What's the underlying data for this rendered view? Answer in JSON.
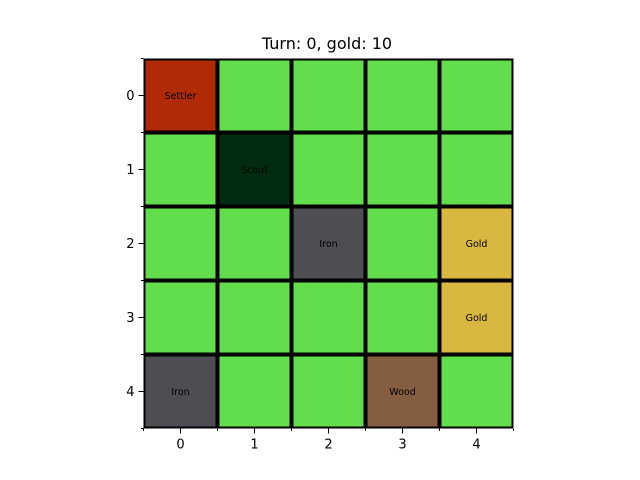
{
  "header": {
    "title": "Turn: 0, gold: 10"
  },
  "grid": {
    "rows": 5,
    "cols": 5,
    "row_labels": [
      "0",
      "1",
      "2",
      "3",
      "4"
    ],
    "col_labels": [
      "0",
      "1",
      "2",
      "3",
      "4"
    ],
    "colors": {
      "grass": "#62de4c",
      "settler": "#b02a06",
      "scout": "#012c12",
      "iron": "#4e4d54",
      "gold": "#d8b840",
      "wood": "#855e42",
      "border": "#000000"
    },
    "cells": [
      [
        {
          "type": "settler",
          "label": "Settler"
        },
        {
          "type": "grass",
          "label": ""
        },
        {
          "type": "grass",
          "label": ""
        },
        {
          "type": "grass",
          "label": ""
        },
        {
          "type": "grass",
          "label": ""
        }
      ],
      [
        {
          "type": "grass",
          "label": ""
        },
        {
          "type": "scout",
          "label": "Scout"
        },
        {
          "type": "grass",
          "label": ""
        },
        {
          "type": "grass",
          "label": ""
        },
        {
          "type": "grass",
          "label": ""
        }
      ],
      [
        {
          "type": "grass",
          "label": ""
        },
        {
          "type": "grass",
          "label": ""
        },
        {
          "type": "iron",
          "label": "Iron"
        },
        {
          "type": "grass",
          "label": ""
        },
        {
          "type": "gold",
          "label": "Gold"
        }
      ],
      [
        {
          "type": "grass",
          "label": ""
        },
        {
          "type": "grass",
          "label": ""
        },
        {
          "type": "grass",
          "label": ""
        },
        {
          "type": "grass",
          "label": ""
        },
        {
          "type": "gold",
          "label": "Gold"
        }
      ],
      [
        {
          "type": "iron",
          "label": "Iron"
        },
        {
          "type": "grass",
          "label": ""
        },
        {
          "type": "grass",
          "label": ""
        },
        {
          "type": "wood",
          "label": "Wood"
        },
        {
          "type": "grass",
          "label": ""
        }
      ]
    ]
  }
}
